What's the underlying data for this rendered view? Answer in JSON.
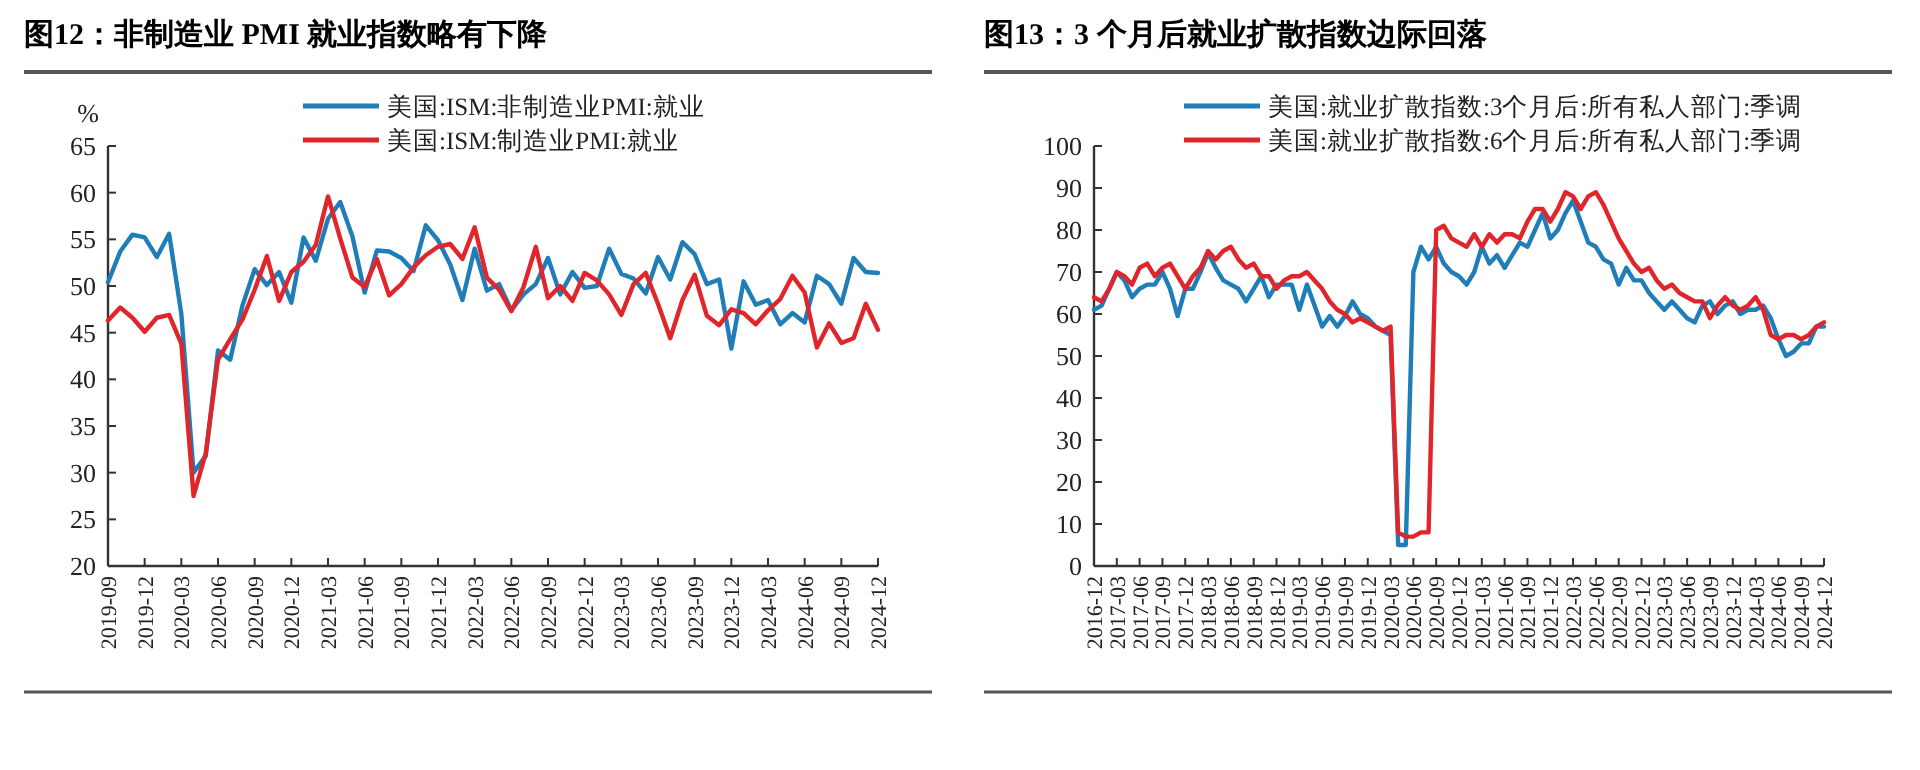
{
  "chart_data": [
    {
      "type": "line",
      "title": "图12：非制造业 PMI 就业指数略有下降",
      "ylabel": "%",
      "legend": "top",
      "xlim": [
        "2019-09",
        "2024-12"
      ],
      "ylim": [
        20,
        65
      ],
      "yticks": [
        20,
        25,
        30,
        35,
        40,
        45,
        50,
        55,
        60,
        65
      ],
      "xticks": [
        "2019-09",
        "2019-12",
        "2020-03",
        "2020-06",
        "2020-09",
        "2020-12",
        "2021-03",
        "2021-06",
        "2021-09",
        "2021-12",
        "2022-03",
        "2022-06",
        "2022-09",
        "2022-12",
        "2023-03",
        "2023-06",
        "2023-09",
        "2023-12",
        "2024-03",
        "2024-06",
        "2024-09",
        "2024-12"
      ],
      "x": [
        "2019-09",
        "2019-10",
        "2019-11",
        "2019-12",
        "2020-01",
        "2020-02",
        "2020-03",
        "2020-04",
        "2020-05",
        "2020-06",
        "2020-07",
        "2020-08",
        "2020-09",
        "2020-10",
        "2020-11",
        "2020-12",
        "2021-01",
        "2021-02",
        "2021-03",
        "2021-04",
        "2021-05",
        "2021-06",
        "2021-07",
        "2021-08",
        "2021-09",
        "2021-10",
        "2021-11",
        "2021-12",
        "2022-01",
        "2022-02",
        "2022-03",
        "2022-04",
        "2022-05",
        "2022-06",
        "2022-07",
        "2022-08",
        "2022-09",
        "2022-10",
        "2022-11",
        "2022-12",
        "2023-01",
        "2023-02",
        "2023-03",
        "2023-04",
        "2023-05",
        "2023-06",
        "2023-07",
        "2023-08",
        "2023-09",
        "2023-10",
        "2023-11",
        "2023-12",
        "2024-01",
        "2024-02",
        "2024-03",
        "2024-04",
        "2024-05",
        "2024-06",
        "2024-07",
        "2024-08",
        "2024-09",
        "2024-10",
        "2024-11",
        "2024-12"
      ],
      "series": [
        {
          "name": "美国:ISM:非制造业PMI:就业",
          "color": "#1f7db8",
          "values": [
            50.4,
            53.7,
            55.5,
            55.2,
            53.1,
            55.6,
            47.0,
            30.0,
            31.8,
            43.1,
            42.1,
            47.9,
            51.8,
            50.1,
            51.5,
            48.2,
            55.2,
            52.7,
            57.2,
            59.0,
            55.3,
            49.3,
            53.8,
            53.7,
            53.0,
            51.6,
            56.5,
            54.9,
            52.3,
            48.5,
            54.0,
            49.5,
            50.2,
            47.4,
            49.1,
            50.2,
            53.0,
            49.1,
            51.5,
            49.8,
            50.0,
            54.0,
            51.3,
            50.8,
            49.2,
            53.1,
            50.7,
            54.7,
            53.4,
            50.2,
            50.7,
            43.3,
            50.5,
            48.0,
            48.5,
            45.9,
            47.1,
            46.1,
            51.1,
            50.2,
            48.1,
            53.0,
            51.5,
            51.4
          ]
        },
        {
          "name": "美国:ISM:制造业PMI:就业",
          "color": "#e0262b",
          "values": [
            46.3,
            47.7,
            46.6,
            45.1,
            46.6,
            46.9,
            43.8,
            27.5,
            32.1,
            42.1,
            44.3,
            46.4,
            49.6,
            53.2,
            48.4,
            51.5,
            52.6,
            54.4,
            59.6,
            55.1,
            50.9,
            49.9,
            52.9,
            49.0,
            50.2,
            52.0,
            53.3,
            54.2,
            54.5,
            52.9,
            56.3,
            50.9,
            49.6,
            47.3,
            49.9,
            54.2,
            48.7,
            50.0,
            48.4,
            51.4,
            50.6,
            49.1,
            46.9,
            50.2,
            51.4,
            48.1,
            44.4,
            48.5,
            51.2,
            46.8,
            45.8,
            47.5,
            47.1,
            45.9,
            47.4,
            48.6,
            51.1,
            49.3,
            43.4,
            46.0,
            43.9,
            44.4,
            48.1,
            45.3
          ]
        }
      ]
    },
    {
      "type": "line",
      "title": "图13：3 个月后就业扩散指数边际回落",
      "legend": "top right",
      "xlim": [
        "2016-12",
        "2024-12"
      ],
      "ylim": [
        0,
        100
      ],
      "yticks": [
        0,
        10,
        20,
        30,
        40,
        50,
        60,
        70,
        80,
        90,
        100
      ],
      "xticks": [
        "2016-12",
        "2017-03",
        "2017-06",
        "2017-09",
        "2017-12",
        "2018-03",
        "2018-06",
        "2018-09",
        "2018-12",
        "2019-03",
        "2019-06",
        "2019-09",
        "2019-12",
        "2020-03",
        "2020-06",
        "2020-09",
        "2020-12",
        "2021-03",
        "2021-06",
        "2021-09",
        "2021-12",
        "2022-03",
        "2022-06",
        "2022-09",
        "2022-12",
        "2023-03",
        "2023-06",
        "2023-09",
        "2023-12",
        "2024-03",
        "2024-06",
        "2024-09",
        "2024-12"
      ],
      "x": [
        "2016-12",
        "2017-01",
        "2017-02",
        "2017-03",
        "2017-04",
        "2017-05",
        "2017-06",
        "2017-07",
        "2017-08",
        "2017-09",
        "2017-10",
        "2017-11",
        "2017-12",
        "2018-01",
        "2018-02",
        "2018-03",
        "2018-04",
        "2018-05",
        "2018-06",
        "2018-07",
        "2018-08",
        "2018-09",
        "2018-10",
        "2018-11",
        "2018-12",
        "2019-01",
        "2019-02",
        "2019-03",
        "2019-04",
        "2019-05",
        "2019-06",
        "2019-07",
        "2019-08",
        "2019-09",
        "2019-10",
        "2019-11",
        "2019-12",
        "2020-01",
        "2020-02",
        "2020-03",
        "2020-04",
        "2020-05",
        "2020-06",
        "2020-07",
        "2020-08",
        "2020-09",
        "2020-10",
        "2020-11",
        "2020-12",
        "2021-01",
        "2021-02",
        "2021-03",
        "2021-04",
        "2021-05",
        "2021-06",
        "2021-07",
        "2021-08",
        "2021-09",
        "2021-10",
        "2021-11",
        "2021-12",
        "2022-01",
        "2022-02",
        "2022-03",
        "2022-04",
        "2022-05",
        "2022-06",
        "2022-07",
        "2022-08",
        "2022-09",
        "2022-10",
        "2022-11",
        "2022-12",
        "2023-01",
        "2023-02",
        "2023-03",
        "2023-04",
        "2023-05",
        "2023-06",
        "2023-07",
        "2023-08",
        "2023-09",
        "2023-10",
        "2023-11",
        "2023-12",
        "2024-01",
        "2024-02",
        "2024-03",
        "2024-04",
        "2024-05",
        "2024-06",
        "2024-07",
        "2024-08",
        "2024-09",
        "2024-10",
        "2024-11",
        "2024-12"
      ],
      "series": [
        {
          "name": "美国:就业扩散指数:3个月后:所有私人部门:季调",
          "color": "#1f7db8",
          "values": [
            61,
            62,
            66,
            70,
            68,
            64,
            66,
            67,
            67,
            70,
            66,
            59.5,
            66,
            66,
            70,
            74.5,
            71,
            68,
            67,
            66,
            63,
            66,
            69,
            64,
            67,
            67,
            67,
            61,
            67,
            62,
            57,
            59.5,
            57,
            59.5,
            63,
            60,
            59,
            57,
            56,
            55,
            5,
            5,
            70,
            76,
            73,
            76,
            72,
            70,
            69,
            67,
            70,
            76,
            72,
            74,
            71,
            74,
            77,
            76,
            80,
            84,
            78,
            80,
            84,
            87,
            82,
            77,
            76,
            73,
            72,
            67,
            71,
            68,
            68,
            65,
            63,
            61,
            63,
            61,
            59,
            58,
            62,
            63,
            60,
            62,
            63,
            60,
            61,
            61,
            62,
            59,
            54,
            50,
            51,
            53,
            53,
            57,
            57
          ]
        },
        {
          "name": "美国:就业扩散指数:6个月后:所有私人部门:季调",
          "color": "#e0262b",
          "values": [
            64,
            63,
            66,
            70,
            69,
            67,
            71,
            72,
            69,
            71,
            72,
            69,
            66,
            69,
            71,
            75,
            73,
            75,
            76,
            73,
            71,
            72,
            69,
            69,
            66,
            68,
            69,
            69,
            70,
            68,
            66,
            63,
            61,
            60,
            58,
            59,
            58,
            57,
            56,
            57,
            8,
            7,
            7,
            8,
            8,
            80,
            81,
            78,
            77,
            76,
            79,
            76,
            79,
            77,
            79,
            79,
            78,
            82,
            85,
            85,
            82,
            85,
            89,
            88,
            85,
            88,
            89,
            86,
            82,
            78,
            75,
            72,
            70,
            71,
            68,
            66,
            67,
            65,
            64,
            63,
            63,
            59,
            62,
            64,
            62,
            61,
            62,
            64,
            61,
            55,
            54,
            55,
            55,
            54,
            55,
            57,
            58
          ]
        }
      ]
    }
  ]
}
